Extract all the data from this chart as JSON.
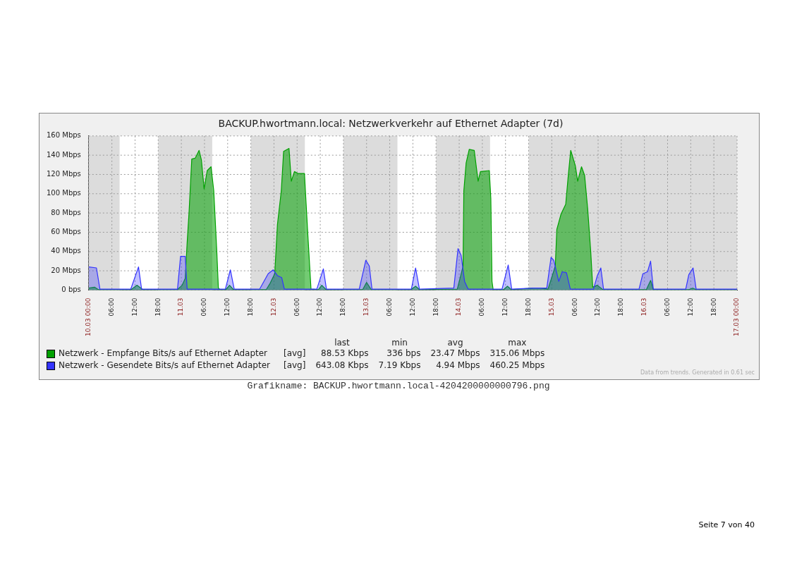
{
  "chart_data": {
    "type": "area",
    "title": "BACKUP.hwortmann.local: Netzwerkverkehr auf Ethernet Adapter (7d)",
    "xlim": [
      "--03-10T00:00",
      "--03-17T00:00"
    ],
    "xticks": [
      {
        "value": "--03-10T00:00",
        "label": "10.03 00:00"
      },
      {
        "value": "--03-10T06:00",
        "label": "06:00"
      },
      {
        "value": "--03-10T12:00",
        "label": "12:00"
      },
      {
        "value": "--03-10T18:00",
        "label": "18:00"
      },
      {
        "value": "--03-11T00:00",
        "label": "11.03"
      },
      {
        "value": "--03-11T06:00",
        "label": "06:00"
      },
      {
        "value": "--03-11T12:00",
        "label": "12:00"
      },
      {
        "value": "--03-11T18:00",
        "label": "18:00"
      },
      {
        "value": "--03-12T00:00",
        "label": "12.03"
      },
      {
        "value": "--03-12T06:00",
        "label": "06:00"
      },
      {
        "value": "--03-12T12:00",
        "label": "12:00"
      },
      {
        "value": "--03-12T18:00",
        "label": "18:00"
      },
      {
        "value": "--03-13T00:00",
        "label": "13.03"
      },
      {
        "value": "--03-13T06:00",
        "label": "06:00"
      },
      {
        "value": "--03-13T12:00",
        "label": "12:00"
      },
      {
        "value": "--03-13T18:00",
        "label": "18:00"
      },
      {
        "value": "--03-14T00:00",
        "label": "14.03"
      },
      {
        "value": "--03-14T06:00",
        "label": "06:00"
      },
      {
        "value": "--03-14T12:00",
        "label": "12:00"
      },
      {
        "value": "--03-14T18:00",
        "label": "18:00"
      },
      {
        "value": "--03-15T00:00",
        "label": "15.03"
      },
      {
        "value": "--03-15T06:00",
        "label": "06:00"
      },
      {
        "value": "--03-15T12:00",
        "label": "12:00"
      },
      {
        "value": "--03-15T18:00",
        "label": "18:00"
      },
      {
        "value": "--03-16T00:00",
        "label": "16.03"
      },
      {
        "value": "--03-16T06:00",
        "label": "06:00"
      },
      {
        "value": "--03-16T12:00",
        "label": "12:00"
      },
      {
        "value": "--03-16T18:00",
        "label": "18:00"
      },
      {
        "value": "--03-17T00:00",
        "label": "17.03 00:00"
      }
    ],
    "ylim": [
      0,
      160
    ],
    "yticks": [
      {
        "value": 0,
        "label": "0 bps"
      },
      {
        "value": 20,
        "label": "20 Mbps"
      },
      {
        "value": 40,
        "label": "40 Mbps"
      },
      {
        "value": 60,
        "label": "60 Mbps"
      },
      {
        "value": 80,
        "label": "80 Mbps"
      },
      {
        "value": 100,
        "label": "100 Mbps"
      },
      {
        "value": 120,
        "label": "120 Mbps"
      },
      {
        "value": 140,
        "label": "140 Mbps"
      },
      {
        "value": 160,
        "label": "160 Mbps"
      }
    ],
    "grid": true,
    "legend": "bottom",
    "bands": [
      {
        "axis": "x",
        "from": "--03-10T00:00",
        "to": "--03-10T08:00",
        "color": "#dcdcdc"
      },
      {
        "axis": "x",
        "from": "--03-10T18:00",
        "to": "--03-11T08:00",
        "color": "#dcdcdc"
      },
      {
        "axis": "x",
        "from": "--03-11T18:00",
        "to": "--03-12T08:00",
        "color": "#dcdcdc"
      },
      {
        "axis": "x",
        "from": "--03-12T18:00",
        "to": "--03-13T08:00",
        "color": "#dcdcdc"
      },
      {
        "axis": "x",
        "from": "--03-13T18:00",
        "to": "--03-14T08:00",
        "color": "#dcdcdc"
      },
      {
        "axis": "x",
        "from": "--03-14T18:00",
        "to": "--03-17T00:00",
        "color": "#dcdcdc"
      }
    ],
    "series": [
      {
        "name": "Netzwerk - Empfange Bits/s auf Ethernet Adapter",
        "color": "#00a000",
        "x": [
          "--03-10T00:00",
          "--03-10T01:30",
          "--03-10T02:30",
          "--03-10T11:00",
          "--03-10T12:30",
          "--03-10T14:00",
          "--03-10T23:00",
          "--03-11T00:12",
          "--03-11T01:00",
          "--03-11T01:30",
          "--03-11T02:00",
          "--03-11T02:42",
          "--03-11T03:36",
          "--03-11T04:36",
          "--03-11T05:12",
          "--03-11T05:54",
          "--03-11T06:42",
          "--03-11T07:42",
          "--03-11T08:24",
          "--03-11T09:12",
          "--03-11T09:36",
          "--03-11T10:00",
          "--03-11T11:30",
          "--03-11T12:30",
          "--03-11T13:30",
          "--03-11T22:00",
          "--03-11T23:00",
          "--03-12T00:12",
          "--03-12T00:54",
          "--03-12T01:54",
          "--03-12T02:30",
          "--03-12T03:54",
          "--03-12T04:30",
          "--03-12T05:18",
          "--03-12T06:12",
          "--03-12T07:54",
          "--03-12T08:42",
          "--03-12T09:36",
          "--03-12T11:30",
          "--03-12T12:24",
          "--03-12T13:30",
          "--03-12T23:00",
          "--03-13T00:00",
          "--03-13T01:12",
          "--03-13T11:30",
          "--03-13T12:42",
          "--03-13T13:42",
          "--03-13T23:30",
          "--03-14T00:12",
          "--03-14T01:00",
          "--03-14T01:12",
          "--03-14T01:48",
          "--03-14T02:36",
          "--03-14T03:54",
          "--03-14T04:54",
          "--03-14T05:30",
          "--03-14T07:48",
          "--03-14T08:12",
          "--03-14T08:30",
          "--03-14T08:48",
          "--03-14T11:30",
          "--03-14T12:30",
          "--03-14T13:30",
          "--03-14T19:18",
          "--03-14T21:06",
          "--03-14T23:00",
          "--03-14T23:54",
          "--03-15T00:54",
          "--03-15T01:18",
          "--03-15T02:24",
          "--03-15T03:36",
          "--03-15T04:12",
          "--03-15T04:54",
          "--03-15T06:06",
          "--03-15T06:42",
          "--03-15T07:42",
          "--03-15T08:30",
          "--03-15T09:18",
          "--03-15T10:06",
          "--03-15T10:36",
          "--03-15T11:48",
          "--03-15T13:12",
          "--03-16T00:30",
          "--03-16T01:36",
          "--03-16T02:18",
          "--03-16T11:30",
          "--03-16T12:30",
          "--03-16T13:24",
          "--03-17T00:00"
        ],
        "values": [
          2,
          3,
          0.5,
          0.5,
          5,
          0.5,
          0.5,
          5,
          12,
          49,
          81,
          136,
          137,
          145,
          135,
          105,
          124,
          128,
          103,
          39,
          2,
          0.5,
          0.5,
          5,
          0.5,
          0.5,
          7,
          17,
          68,
          103,
          144,
          147,
          113,
          123,
          121,
          121,
          63,
          1,
          0.5,
          5,
          0.5,
          0.5,
          8,
          0.5,
          0.5,
          4,
          0.5,
          1,
          12,
          25,
          103,
          132,
          146,
          145,
          113,
          123,
          124,
          95,
          9,
          0.5,
          0.5,
          4,
          0.5,
          2,
          2,
          1,
          12,
          25,
          63,
          79,
          89,
          116,
          145,
          129,
          113,
          128,
          119,
          84,
          39,
          3,
          5,
          0.5,
          0.5,
          10,
          0.5,
          0.5,
          2,
          0.5,
          0.5
        ]
      },
      {
        "name": "Netzwerk - Gesendete Bits/s auf Ethernet Adapter",
        "color": "#3333ff",
        "x": [
          "--03-10T00:00",
          "--03-10T02:00",
          "--03-10T02:54",
          "--03-10T10:54",
          "--03-10T12:54",
          "--03-10T13:42",
          "--03-10T23:00",
          "--03-10T23:48",
          "--03-11T01:00",
          "--03-11T01:30",
          "--03-11T11:24",
          "--03-11T12:42",
          "--03-11T13:42",
          "--03-11T20:18",
          "--03-11T22:30",
          "--03-11T23:48",
          "--03-12T00:54",
          "--03-12T02:00",
          "--03-12T02:42",
          "--03-12T11:06",
          "--03-12T12:48",
          "--03-12T13:36",
          "--03-12T22:06",
          "--03-12T23:48",
          "--03-13T00:42",
          "--03-13T01:24",
          "--03-13T11:36",
          "--03-13T12:42",
          "--03-13T13:42",
          "--03-13T22:36",
          "--03-13T23:42",
          "--03-14T00:30",
          "--03-14T01:24",
          "--03-14T02:18",
          "--03-14T11:06",
          "--03-14T12:42",
          "--03-14T13:36",
          "--03-14T19:18",
          "--03-14T21:06",
          "--03-14T22:42",
          "--03-14T23:48",
          "--03-15T00:30",
          "--03-15T01:48",
          "--03-15T02:42",
          "--03-15T03:48",
          "--03-15T04:48",
          "--03-15T10:48",
          "--03-15T11:48",
          "--03-15T12:42",
          "--03-15T13:24",
          "--03-15T22:36",
          "--03-15T23:36",
          "--03-16T00:48",
          "--03-16T01:36",
          "--03-16T02:18",
          "--03-16T10:42",
          "--03-16T11:30",
          "--03-16T12:36",
          "--03-16T13:24",
          "--03-17T00:00"
        ],
        "values": [
          24,
          23,
          1,
          1,
          24,
          1,
          1,
          35,
          35,
          1,
          1,
          21,
          1,
          1,
          17,
          21,
          15,
          13,
          1,
          1,
          22,
          1,
          1,
          31,
          25,
          1,
          1,
          23,
          1,
          2,
          43,
          36,
          9,
          1,
          1,
          26,
          1,
          2,
          2,
          2,
          34,
          31,
          9,
          19,
          18,
          1,
          1,
          15,
          23,
          1,
          1,
          17,
          19,
          30,
          1,
          1,
          16,
          23,
          1,
          1
        ]
      }
    ],
    "annotations": [
      "last",
      "min",
      "avg",
      "max",
      "[avg]",
      "88.53 Kbps",
      "336 bps",
      "23.47 Mbps",
      "315.06 Mbps",
      "[avg]",
      "643.08 Kbps",
      "7.19 Kbps",
      "4.94 Mbps",
      "460.25 Mbps",
      "Data from trends. Generated in 0.61 sec",
      "Grafikname: BACKUP.hwortmann.local-4204200000000796.png",
      "Seite 7 von 40"
    ]
  }
}
